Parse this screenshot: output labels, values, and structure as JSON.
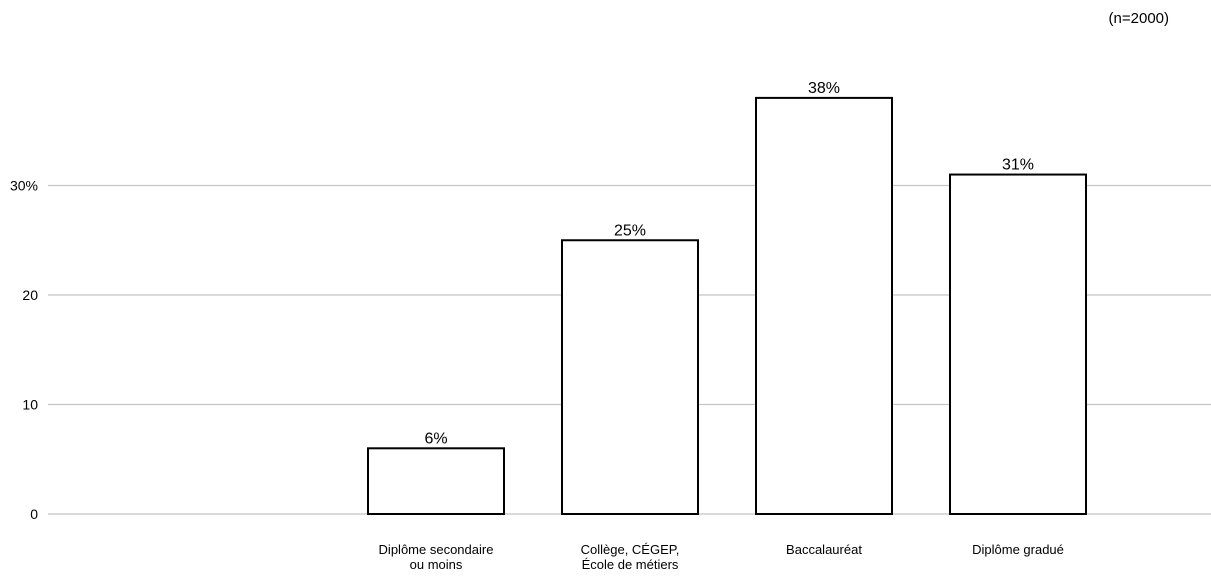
{
  "chart_data": {
    "type": "bar",
    "note": "(n=2000)",
    "categories": [
      [
        "Diplôme secondaire",
        "ou moins"
      ],
      [
        "Collège, CÉGEP,",
        "École de métiers"
      ],
      [
        "Baccalauréat"
      ],
      [
        "Diplôme gradué"
      ]
    ],
    "values": [
      6,
      25,
      38,
      31
    ],
    "value_labels": [
      "6%",
      "25%",
      "38%",
      "31%"
    ],
    "y_ticks": [
      {
        "value": 0,
        "label": "0"
      },
      {
        "value": 10,
        "label": "10"
      },
      {
        "value": 20,
        "label": "20"
      },
      {
        "value": 30,
        "label": "30%"
      }
    ],
    "ylim": [
      0,
      40
    ],
    "grid": true,
    "colors": {
      "bar_fill": "#ffffff",
      "bar_stroke": "#000000",
      "grid": "#c4c4c4",
      "text": "#000000"
    }
  }
}
